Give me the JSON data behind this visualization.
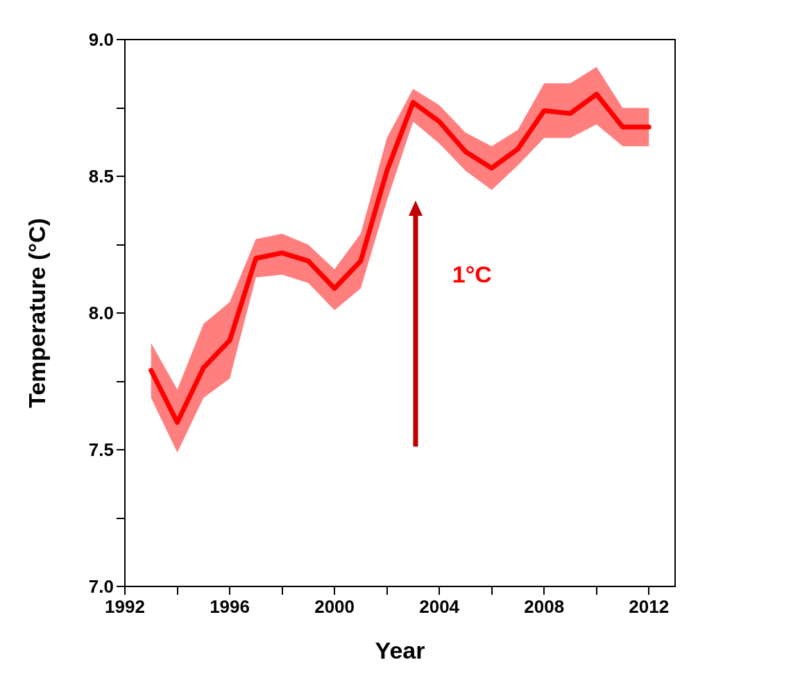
{
  "chart_data": {
    "type": "line",
    "xlabel": "Year",
    "ylabel": "Temperature (°C)",
    "x": [
      1993,
      1994,
      1995,
      1996,
      1997,
      1998,
      1999,
      2000,
      2001,
      2002,
      2003,
      2004,
      2005,
      2006,
      2007,
      2008,
      2009,
      2010,
      2011,
      2012
    ],
    "series": [
      {
        "color": "#ff0000",
        "values": [
          7.79,
          7.6,
          7.8,
          7.9,
          8.2,
          8.22,
          8.19,
          8.09,
          8.19,
          8.52,
          8.77,
          8.7,
          8.59,
          8.53,
          8.6,
          8.74,
          8.73,
          8.8,
          8.68,
          8.68
        ],
        "lower": [
          7.69,
          7.49,
          7.69,
          7.76,
          8.13,
          8.14,
          8.11,
          8.01,
          8.09,
          8.41,
          8.7,
          8.62,
          8.52,
          8.45,
          8.54,
          8.64,
          8.64,
          8.69,
          8.61,
          8.61
        ],
        "upper": [
          7.89,
          7.72,
          7.96,
          8.04,
          8.27,
          8.29,
          8.25,
          8.16,
          8.29,
          8.64,
          8.82,
          8.76,
          8.66,
          8.61,
          8.67,
          8.84,
          8.84,
          8.9,
          8.75,
          8.75
        ]
      }
    ],
    "xlim": [
      1992,
      2013
    ],
    "xticks": [
      1992,
      {
        "value": 1994,
        "label": null
      },
      1996,
      {
        "value": 1998,
        "label": null
      },
      2000,
      {
        "value": 2002,
        "label": null
      },
      2004,
      {
        "value": 2006,
        "label": null
      },
      2008,
      {
        "value": 2010,
        "label": null
      },
      2012
    ],
    "ylim": [
      7.0,
      9.0
    ],
    "yticks": [
      {
        "value": 7.0,
        "label": "7.0"
      },
      {
        "value": 7.25,
        "label": null
      },
      7.5,
      {
        "value": 7.75,
        "label": null
      },
      {
        "value": 8.0,
        "label": "8.0"
      },
      {
        "value": 8.25,
        "label": null
      },
      8.5,
      {
        "value": 8.75,
        "label": null
      },
      {
        "value": 9.0,
        "label": "9.0"
      }
    ],
    "annotations": [
      "1°C"
    ],
    "grid": false,
    "marker": "none",
    "line_style": "solid"
  }
}
